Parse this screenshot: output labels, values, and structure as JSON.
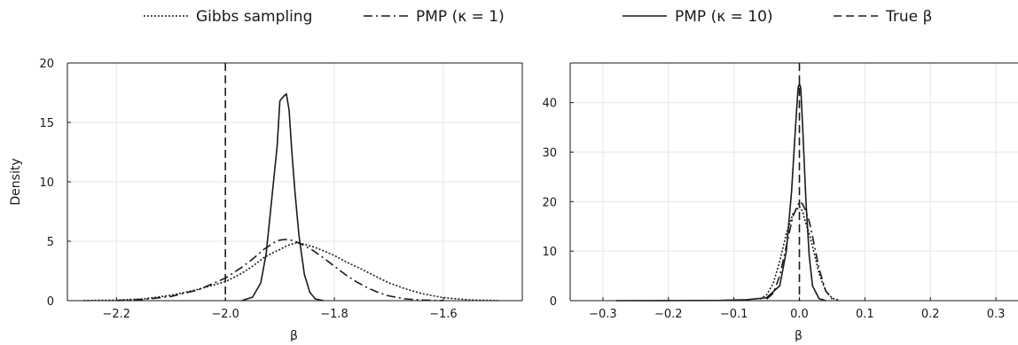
{
  "legend": [
    {
      "label": "Gibbs sampling",
      "style": "dotted"
    },
    {
      "label": "PMP (κ = 1)",
      "style": "dashdot"
    },
    {
      "label": "PMP (κ = 10)",
      "style": "solid"
    },
    {
      "label": "True β",
      "style": "dashed"
    }
  ],
  "line_color": "#1a1a1a",
  "chart_data": [
    {
      "type": "line",
      "xlabel": "β",
      "ylabel": "Density",
      "xlim": [
        -2.29,
        -1.455
      ],
      "ylim": [
        0,
        20
      ],
      "xticks": [
        -2.2,
        -2.0,
        -1.8,
        -1.6
      ],
      "xtick_labels": [
        "−2.2",
        "−2.0",
        "−1.8",
        "−1.6"
      ],
      "yticks": [
        0,
        5,
        10,
        15,
        20
      ],
      "ytick_labels": [
        "0",
        "5",
        "10",
        "15",
        "20"
      ],
      "grid": true,
      "true_beta": -2.0,
      "series": [
        {
          "name": "Gibbs sampling",
          "style": "dotted",
          "x": [
            -2.26,
            -2.2,
            -2.15,
            -2.1,
            -2.05,
            -2.0,
            -1.97,
            -1.95,
            -1.93,
            -1.91,
            -1.9,
            -1.89,
            -1.88,
            -1.87,
            -1.86,
            -1.84,
            -1.82,
            -1.8,
            -1.78,
            -1.75,
            -1.72,
            -1.7,
            -1.67,
            -1.64,
            -1.6,
            -1.55,
            -1.5
          ],
          "y": [
            0.01,
            0.05,
            0.15,
            0.45,
            0.95,
            1.6,
            2.3,
            2.9,
            3.6,
            4.1,
            4.3,
            4.55,
            4.75,
            4.85,
            4.8,
            4.55,
            4.2,
            3.8,
            3.3,
            2.65,
            1.95,
            1.5,
            1.0,
            0.6,
            0.25,
            0.06,
            0.01
          ]
        },
        {
          "name": "PMP (κ = 1)",
          "style": "dashdot",
          "x": [
            -2.2,
            -2.15,
            -2.1,
            -2.05,
            -2.0,
            -1.97,
            -1.95,
            -1.93,
            -1.91,
            -1.9,
            -1.89,
            -1.88,
            -1.87,
            -1.86,
            -1.84,
            -1.82,
            -1.8,
            -1.78,
            -1.76,
            -1.74,
            -1.72,
            -1.7,
            -1.67,
            -1.64,
            -1.6
          ],
          "y": [
            0.01,
            0.1,
            0.35,
            0.9,
            1.9,
            2.8,
            3.5,
            4.3,
            4.9,
            5.1,
            5.15,
            5.1,
            4.95,
            4.75,
            4.25,
            3.6,
            2.9,
            2.2,
            1.6,
            1.1,
            0.7,
            0.4,
            0.15,
            0.05,
            0.01
          ]
        },
        {
          "name": "PMP (κ = 10)",
          "style": "solid",
          "x": [
            -1.97,
            -1.95,
            -1.935,
            -1.925,
            -1.915,
            -1.905,
            -1.9,
            -1.893,
            -1.888,
            -1.883,
            -1.878,
            -1.872,
            -1.865,
            -1.855,
            -1.845,
            -1.835,
            -1.82
          ],
          "y": [
            0.0,
            0.3,
            1.5,
            4.0,
            8.5,
            13.0,
            16.8,
            17.2,
            17.4,
            16.0,
            12.5,
            9.0,
            5.5,
            2.2,
            0.7,
            0.15,
            0.0
          ]
        }
      ]
    },
    {
      "type": "line",
      "xlabel": "β",
      "ylabel": "",
      "xlim": [
        -0.35,
        0.35
      ],
      "ylim": [
        0,
        48
      ],
      "xticks": [
        -0.3,
        -0.2,
        -0.1,
        0.0,
        0.1,
        0.2,
        0.3
      ],
      "xtick_labels": [
        "−0.3",
        "−0.2",
        "−0.1",
        "0.0",
        "0.1",
        "0.2",
        "0.3"
      ],
      "yticks": [
        0,
        10,
        20,
        30,
        40
      ],
      "ytick_labels": [
        "0",
        "10",
        "20",
        "30",
        "40"
      ],
      "grid": true,
      "true_beta": 0.0,
      "series": [
        {
          "name": "Gibbs sampling",
          "style": "dotted",
          "x": [
            -0.06,
            -0.05,
            -0.04,
            -0.03,
            -0.02,
            -0.01,
            0.0,
            0.005,
            0.01,
            0.015,
            0.02,
            0.03,
            0.04,
            0.05,
            0.06
          ],
          "y": [
            0.3,
            1.2,
            3.5,
            8.0,
            13.5,
            17.5,
            19.0,
            18.0,
            15.5,
            13.5,
            11.0,
            5.5,
            2.0,
            0.5,
            0.1
          ]
        },
        {
          "name": "PMP (κ = 1)",
          "style": "dashdot",
          "x": [
            -0.05,
            -0.04,
            -0.03,
            -0.02,
            -0.01,
            0.0,
            0.005,
            0.01,
            0.015,
            0.02,
            0.03,
            0.04,
            0.05
          ],
          "y": [
            0.3,
            1.5,
            5.0,
            11.0,
            17.0,
            20.0,
            19.5,
            18.0,
            16.0,
            13.0,
            6.5,
            2.0,
            0.3
          ]
        },
        {
          "name": "PMP (κ = 10)",
          "style": "solid",
          "x": [
            -0.28,
            -0.2,
            -0.12,
            -0.08,
            -0.05,
            -0.03,
            -0.02,
            -0.012,
            -0.006,
            -0.002,
            0.0,
            0.002,
            0.005,
            0.01,
            0.015,
            0.02,
            0.03,
            0.04
          ],
          "y": [
            0.0,
            0.02,
            0.05,
            0.2,
            0.6,
            3.0,
            10.0,
            22.0,
            35.0,
            43.0,
            43.8,
            43.0,
            35.0,
            20.0,
            9.0,
            3.0,
            0.4,
            0.0
          ]
        }
      ]
    }
  ]
}
